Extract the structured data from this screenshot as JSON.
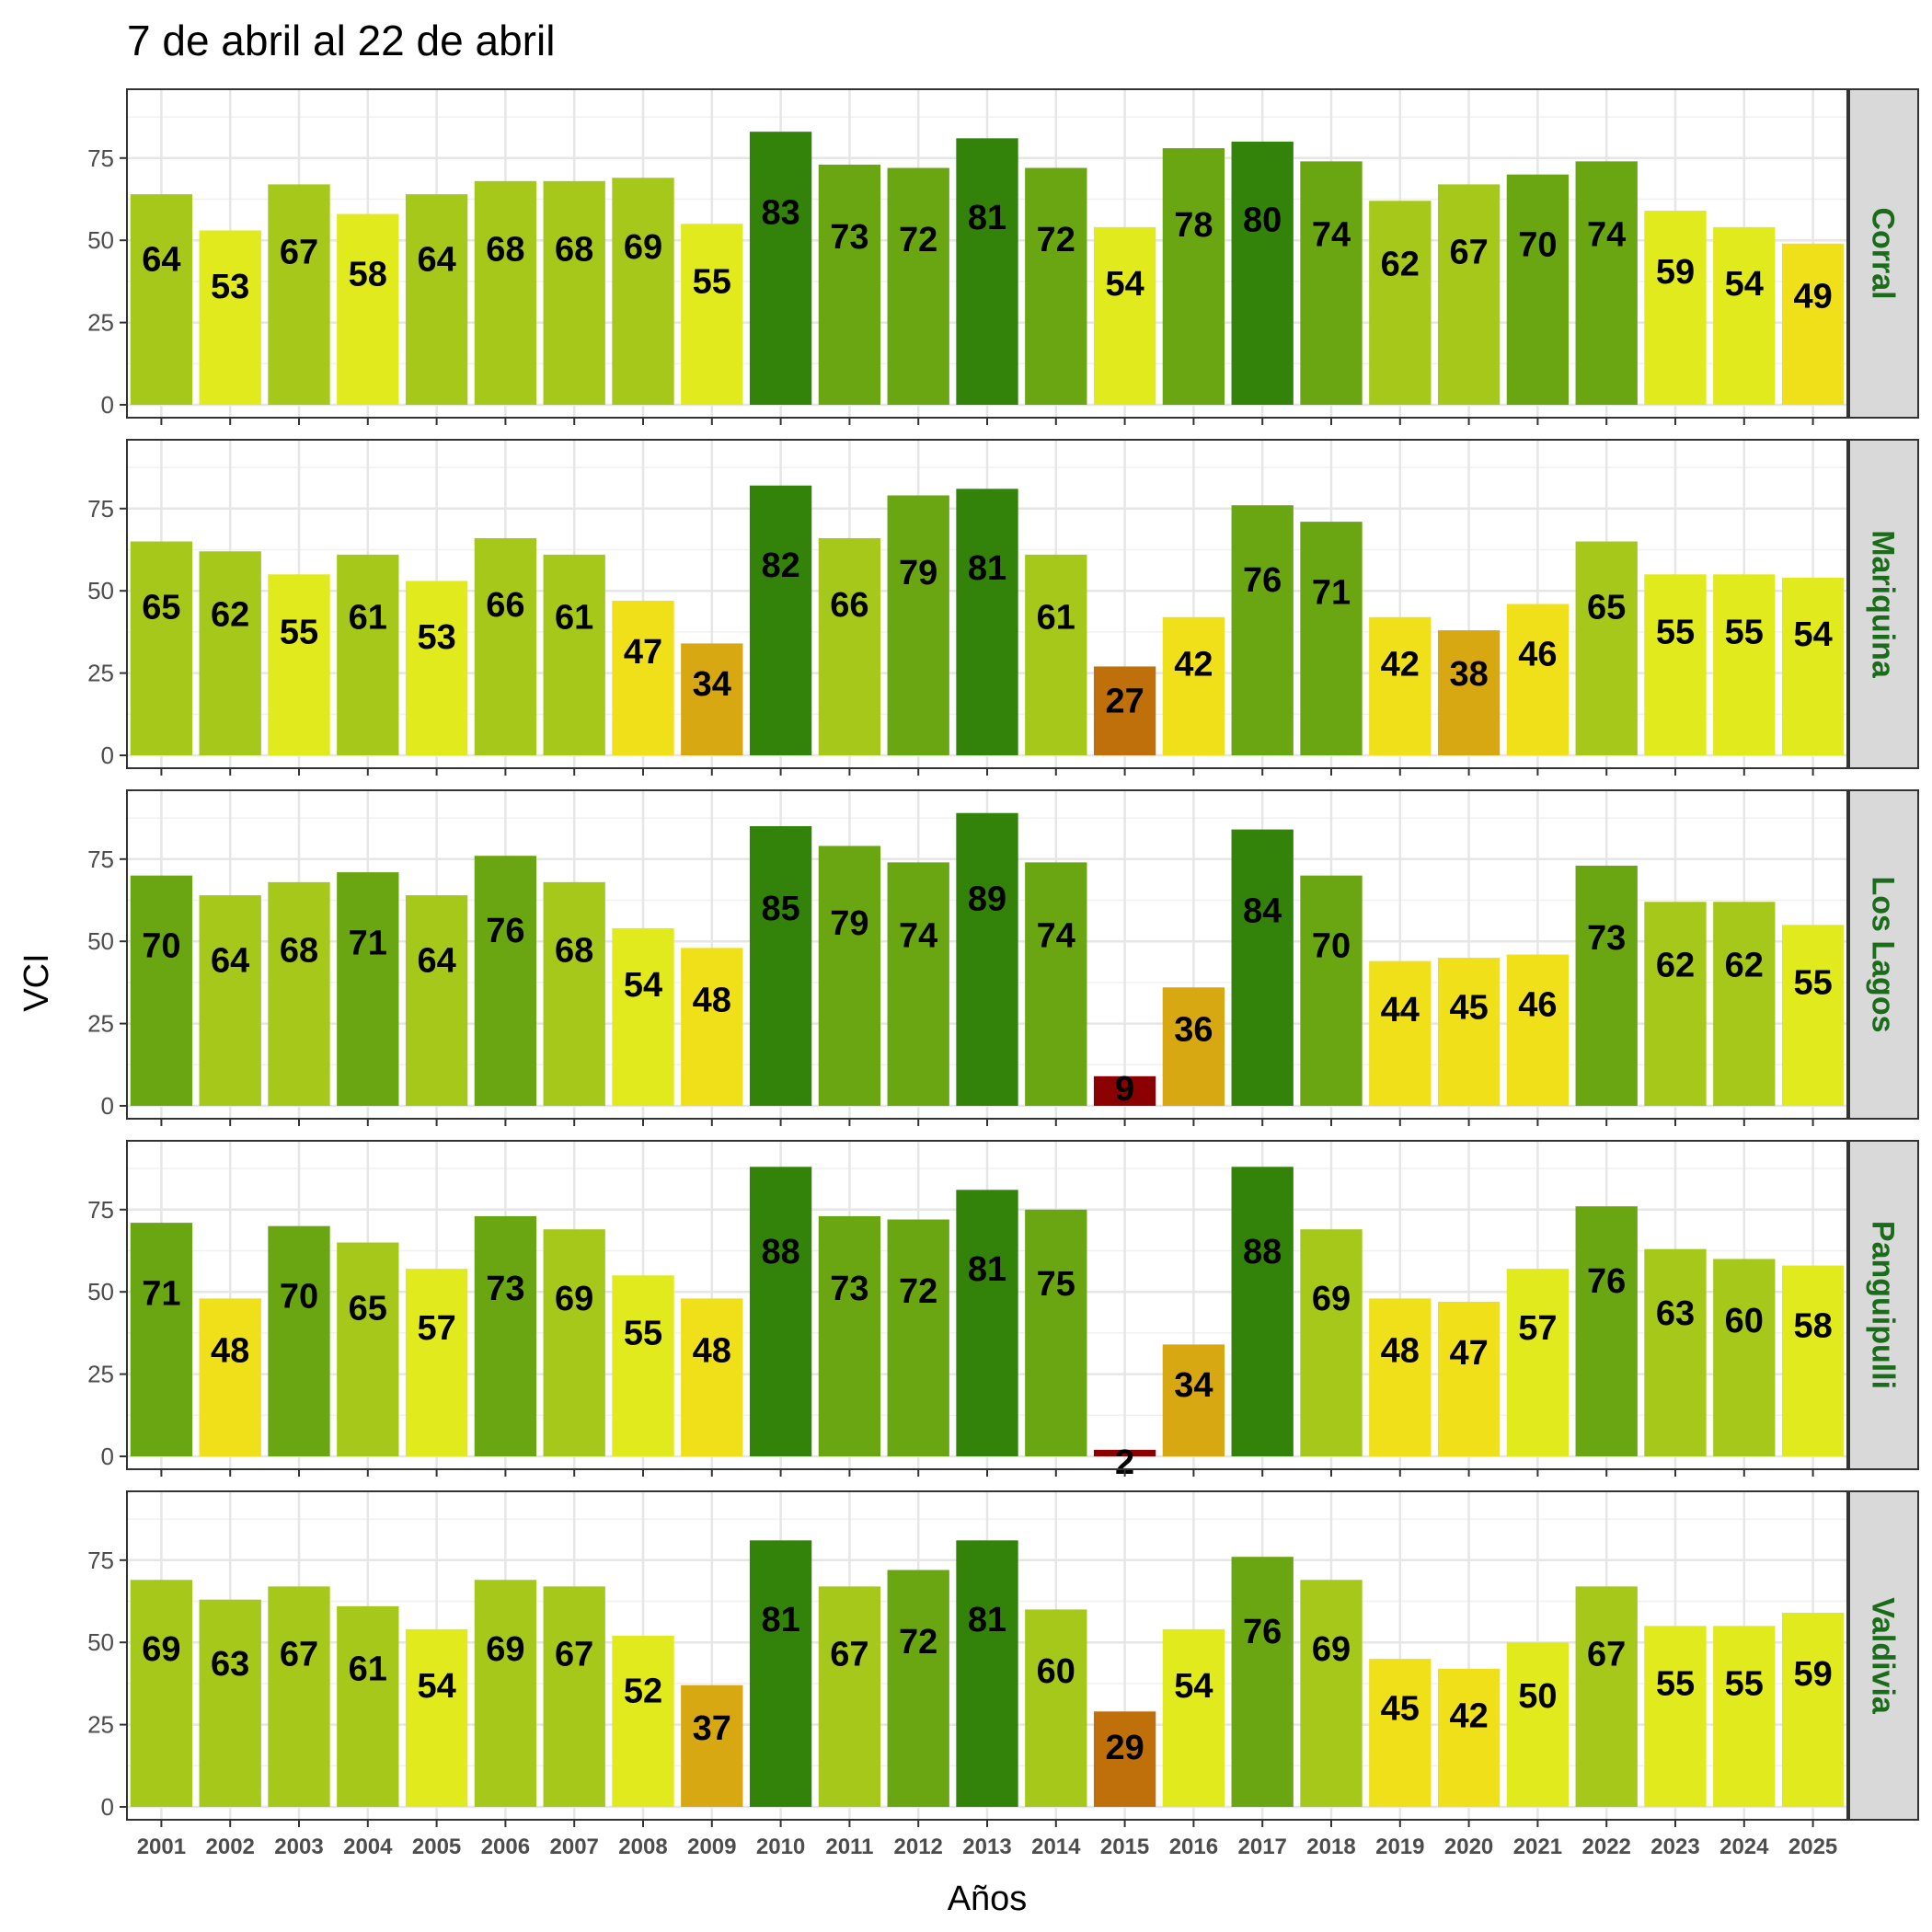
{
  "chart_data": {
    "type": "bar",
    "title": "7 de abril al 22 de abril",
    "xlabel": "Años",
    "ylabel": "VCI",
    "ylim": [
      0,
      92
    ],
    "yticks": [
      0,
      25,
      50,
      75
    ],
    "grid": true,
    "strip_text_color": "#1a6b1a",
    "categories": [
      "2001",
      "2002",
      "2003",
      "2004",
      "2005",
      "2006",
      "2007",
      "2008",
      "2009",
      "2010",
      "2011",
      "2012",
      "2013",
      "2014",
      "2015",
      "2016",
      "2017",
      "2018",
      "2019",
      "2020",
      "2021",
      "2022",
      "2023",
      "2024",
      "2025"
    ],
    "color_scale": [
      {
        "min": 80,
        "color": "#33820a"
      },
      {
        "min": 70,
        "color": "#6aa612"
      },
      {
        "min": 60,
        "color": "#a6c81a"
      },
      {
        "min": 50,
        "color": "#e0ea1c"
      },
      {
        "min": 40,
        "color": "#f0e01a"
      },
      {
        "min": 30,
        "color": "#d8a812"
      },
      {
        "min": 20,
        "color": "#c0700a"
      },
      {
        "min": 0,
        "color": "#8b0000"
      }
    ],
    "series": [
      {
        "name": "Corral",
        "values": [
          64,
          53,
          67,
          58,
          64,
          68,
          68,
          69,
          55,
          83,
          73,
          72,
          81,
          72,
          54,
          78,
          80,
          74,
          62,
          67,
          70,
          74,
          59,
          54,
          49
        ]
      },
      {
        "name": "Mariquina",
        "values": [
          65,
          62,
          55,
          61,
          53,
          66,
          61,
          47,
          34,
          82,
          66,
          79,
          81,
          61,
          27,
          42,
          76,
          71,
          42,
          38,
          46,
          65,
          55,
          55,
          54
        ]
      },
      {
        "name": "Los Lagos",
        "values": [
          70,
          64,
          68,
          71,
          64,
          76,
          68,
          54,
          48,
          85,
          79,
          74,
          89,
          74,
          9,
          36,
          84,
          70,
          44,
          45,
          46,
          73,
          62,
          62,
          55
        ]
      },
      {
        "name": "Panguipulli",
        "values": [
          71,
          48,
          70,
          65,
          57,
          73,
          69,
          55,
          48,
          88,
          73,
          72,
          81,
          75,
          2,
          34,
          88,
          69,
          48,
          47,
          57,
          76,
          63,
          60,
          58
        ]
      },
      {
        "name": "Valdivia",
        "values": [
          69,
          63,
          67,
          61,
          54,
          69,
          67,
          52,
          37,
          81,
          67,
          72,
          81,
          60,
          29,
          54,
          76,
          69,
          45,
          42,
          50,
          67,
          55,
          55,
          59
        ]
      }
    ]
  }
}
